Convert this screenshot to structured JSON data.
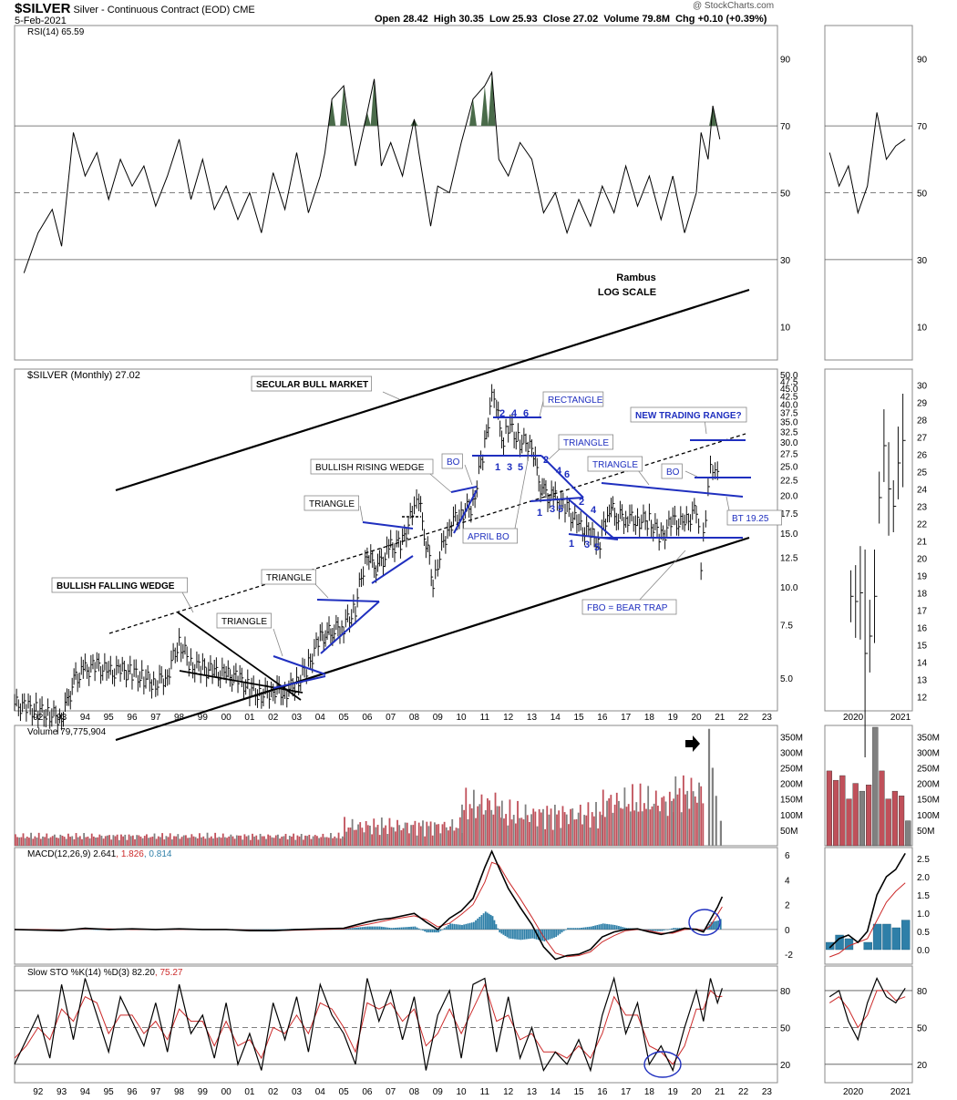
{
  "header": {
    "symbol": "$SILVER",
    "description": "Silver - Continuous Contract (EOD)",
    "exchange": "CME",
    "date": "5-Feb-2021",
    "copyright": "@ StockCharts.com",
    "open_label": "Open",
    "open": "28.42",
    "high_label": "High",
    "high": "30.35",
    "low_label": "Low",
    "low": "25.93",
    "close_label": "Close",
    "close": "27.02",
    "volume_label": "Volume",
    "volume": "79.8M",
    "chg_label": "Chg",
    "chg": "+0.10 (+0.39%)"
  },
  "colors": {
    "background": "#ffffff",
    "frame": "#888888",
    "up_volume": "#808080",
    "down_volume": "#c0505a",
    "annotation_blue": "#1f2fbf",
    "macd_hist": "#2e7fa8",
    "signal_red": "#cc2a2a",
    "rsi_fill": "#4a6b4a"
  },
  "chart_data": [
    {
      "type": "line",
      "name": "rsi",
      "legend": "RSI(14) 65.59",
      "yticks": [
        "90",
        "70",
        "50",
        "30",
        "10"
      ],
      "ylim": [
        0,
        100
      ],
      "reference_lines": [
        70,
        50,
        30
      ],
      "x": [
        1991.4,
        1992.0,
        1992.6,
        1993.0,
        1993.5,
        1994.0,
        1994.5,
        1995.0,
        1995.5,
        1996.0,
        1996.5,
        1997.0,
        1997.5,
        1998.0,
        1998.5,
        1999.0,
        1999.5,
        2000.0,
        2000.5,
        2001.0,
        2001.5,
        2002.0,
        2002.5,
        2003.0,
        2003.5,
        2004.0,
        2004.2,
        2004.5,
        2005.0,
        2005.5,
        2006.0,
        2006.3,
        2006.6,
        2007.0,
        2007.5,
        2008.0,
        2008.2,
        2008.7,
        2009.0,
        2009.5,
        2010.0,
        2010.5,
        2011.0,
        2011.3,
        2011.6,
        2012.0,
        2012.5,
        2013.0,
        2013.5,
        2014.0,
        2014.5,
        2015.0,
        2015.5,
        2016.0,
        2016.5,
        2017.0,
        2017.5,
        2018.0,
        2018.5,
        2019.0,
        2019.5,
        2020.0,
        2020.2,
        2020.5,
        2020.7,
        2021.0
      ],
      "values": [
        26,
        38,
        45,
        34,
        68,
        55,
        62,
        48,
        60,
        52,
        58,
        46,
        55,
        66,
        48,
        60,
        45,
        52,
        42,
        50,
        38,
        56,
        45,
        62,
        44,
        55,
        62,
        78,
        82,
        58,
        74,
        84,
        58,
        65,
        55,
        72,
        62,
        40,
        52,
        50,
        65,
        78,
        82,
        86,
        60,
        55,
        65,
        60,
        44,
        50,
        38,
        48,
        40,
        52,
        44,
        58,
        46,
        55,
        42,
        55,
        38,
        50,
        68,
        60,
        76,
        66
      ],
      "series": [
        {
          "name": "RSI(14)",
          "last": 65.59
        }
      ]
    },
    {
      "type": "line",
      "name": "rsi_inset",
      "yticks": [
        "90",
        "70",
        "50",
        "30",
        "10"
      ],
      "ylim": [
        0,
        100
      ],
      "x": [
        2019.5,
        2019.7,
        2019.9,
        2020.1,
        2020.3,
        2020.5,
        2020.7,
        2020.9,
        2021.1
      ],
      "values": [
        62,
        52,
        58,
        44,
        52,
        74,
        60,
        64,
        66
      ]
    },
    {
      "type": "line",
      "name": "price",
      "legend": "$SILVER (Monthly) 27.02",
      "title": "Rambus",
      "subtitle": "LOG SCALE",
      "log_scale": true,
      "ylim": [
        3.9,
        50
      ],
      "yticks": [
        "50.0",
        "47.5",
        "45.0",
        "42.5",
        "40.0",
        "37.5",
        "35.0",
        "32.5",
        "30.0",
        "27.5",
        "25.0",
        "22.5",
        "20.0",
        "17.5",
        "15.0",
        "12.5",
        "10.0",
        "7.5",
        "5.0"
      ],
      "xticks": [
        "92",
        "93",
        "94",
        "95",
        "96",
        "97",
        "98",
        "99",
        "00",
        "01",
        "02",
        "03",
        "04",
        "05",
        "06",
        "07",
        "08",
        "09",
        "10",
        "11",
        "12",
        "13",
        "14",
        "15",
        "16",
        "17",
        "18",
        "19",
        "20",
        "21",
        "22",
        "23"
      ],
      "x": [
        1991.0,
        1991.5,
        1992.0,
        1992.5,
        1993.0,
        1993.3,
        1993.6,
        1994.0,
        1994.5,
        1995.0,
        1995.5,
        1996.0,
        1996.5,
        1997.0,
        1997.5,
        1998.0,
        1998.5,
        1999.0,
        1999.5,
        2000.0,
        2000.5,
        2001.0,
        2001.5,
        2002.0,
        2002.5,
        2003.0,
        2003.5,
        2004.0,
        2004.3,
        2004.6,
        2005.0,
        2005.5,
        2006.0,
        2006.3,
        2006.6,
        2007.0,
        2007.5,
        2008.0,
        2008.2,
        2008.5,
        2008.8,
        2009.0,
        2009.5,
        2010.0,
        2010.5,
        2011.0,
        2011.3,
        2011.5,
        2011.8,
        2012.0,
        2012.5,
        2013.0,
        2013.3,
        2013.6,
        2014.0,
        2014.5,
        2015.0,
        2015.5,
        2015.9,
        2016.3,
        2016.6,
        2017.0,
        2017.5,
        2018.0,
        2018.5,
        2019.0,
        2019.5,
        2020.0,
        2020.2,
        2020.4,
        2020.6,
        2020.8,
        2021.0
      ],
      "values": [
        4.1,
        4.0,
        3.9,
        3.8,
        3.7,
        4.3,
        5.0,
        5.3,
        5.5,
        5.2,
        5.3,
        5.2,
        5.0,
        4.8,
        5.1,
        6.6,
        5.5,
        5.4,
        5.2,
        5.1,
        5.0,
        4.6,
        4.4,
        4.6,
        4.5,
        4.8,
        5.5,
        6.8,
        7.0,
        7.2,
        7.4,
        8.5,
        13.0,
        11.5,
        12.0,
        13.5,
        14.0,
        18.0,
        19.0,
        14.0,
        10.5,
        12.0,
        16.0,
        17.5,
        18.5,
        29.0,
        42.0,
        38.0,
        30.0,
        34.0,
        30.0,
        29.5,
        22.0,
        20.0,
        19.5,
        18.0,
        15.8,
        14.8,
        14.0,
        18.5,
        17.0,
        17.0,
        16.5,
        16.5,
        14.5,
        16.5,
        16.0,
        18.0,
        12.0,
        17.5,
        26.0,
        24.0,
        27.0
      ]
    },
    {
      "type": "line",
      "name": "price_inset",
      "yticks": [
        "30",
        "29",
        "28",
        "27",
        "26",
        "25",
        "24",
        "23",
        "22",
        "21",
        "20",
        "19",
        "18",
        "17",
        "16",
        "15",
        "14",
        "13",
        "12"
      ],
      "ylim": [
        11.5,
        30.5
      ],
      "xticks": [
        "2020",
        "2021"
      ],
      "x": [
        2019.95,
        2020.05,
        2020.15,
        2020.25,
        2020.35,
        2020.45,
        2020.55,
        2020.65,
        2020.75,
        2020.85,
        2020.95,
        2021.05
      ],
      "values": [
        17.8,
        17.5,
        18.0,
        14.5,
        15.5,
        17.8,
        23.5,
        26.5,
        24.0,
        23.0,
        25.5,
        26.8
      ]
    },
    {
      "type": "bar",
      "name": "volume",
      "legend": "Volume 79,775,904",
      "yticks": [
        "350M",
        "300M",
        "250M",
        "200M",
        "150M",
        "100M",
        "50M"
      ],
      "ylim": [
        0,
        380
      ],
      "ranges": [
        {
          "from": 1991.0,
          "to": 2005.0,
          "min": 18,
          "max": 42
        },
        {
          "from": 2005.0,
          "to": 2010.0,
          "min": 30,
          "max": 95
        },
        {
          "from": 2010.0,
          "to": 2011.7,
          "min": 70,
          "max": 190
        },
        {
          "from": 2011.7,
          "to": 2016.0,
          "min": 50,
          "max": 150
        },
        {
          "from": 2016.0,
          "to": 2019.0,
          "min": 80,
          "max": 200
        },
        {
          "from": 2019.0,
          "to": 2020.3,
          "min": 100,
          "max": 240
        }
      ],
      "spikes": [
        {
          "x": 2020.5,
          "value": 375
        },
        {
          "x": 2020.65,
          "value": 250
        },
        {
          "x": 2020.8,
          "value": 160
        },
        {
          "x": 2021.0,
          "value": 80
        }
      ]
    },
    {
      "type": "bar",
      "name": "volume_inset",
      "yticks": [
        "350M",
        "300M",
        "250M",
        "200M",
        "150M",
        "100M",
        "50M"
      ],
      "ylim": [
        0,
        380
      ],
      "values": [
        240,
        210,
        225,
        150,
        200,
        175,
        195,
        380,
        240,
        150,
        175,
        160,
        80
      ]
    },
    {
      "type": "line",
      "name": "macd",
      "legend": [
        "MACD(12,26,9)",
        "2.641",
        "1.826",
        "0.814"
      ],
      "yticks": [
        "6",
        "4",
        "2",
        "0",
        "-2"
      ],
      "ylim": [
        -2.8,
        6.6
      ],
      "x": [
        1991.0,
        1992.0,
        1993.0,
        1994.0,
        1995.0,
        1996.0,
        1997.0,
        1998.0,
        1999.0,
        2000.0,
        2001.0,
        2002.0,
        2003.0,
        2004.0,
        2005.0,
        2006.0,
        2006.5,
        2007.0,
        2008.0,
        2008.5,
        2009.0,
        2009.5,
        2010.0,
        2010.5,
        2011.0,
        2011.3,
        2011.6,
        2012.0,
        2012.5,
        2013.0,
        2013.5,
        2014.0,
        2014.5,
        2015.0,
        2015.5,
        2016.0,
        2016.5,
        2017.0,
        2017.5,
        2018.0,
        2018.5,
        2019.0,
        2019.5,
        2020.0,
        2020.3,
        2020.6,
        2020.9,
        2021.1
      ],
      "values": [
        0.0,
        -0.05,
        -0.1,
        0.1,
        0.0,
        0.05,
        0.0,
        0.05,
        0.0,
        0.0,
        -0.1,
        -0.1,
        0.0,
        0.05,
        0.1,
        0.6,
        0.8,
        0.9,
        1.3,
        0.6,
        0.0,
        0.9,
        1.5,
        2.5,
        5.0,
        6.3,
        5.0,
        3.3,
        1.8,
        0.4,
        -1.4,
        -2.4,
        -2.1,
        -2.0,
        -1.6,
        -0.6,
        -0.2,
        0.0,
        0.05,
        -0.2,
        -0.4,
        -0.2,
        0.1,
        0.0,
        -0.2,
        0.8,
        1.8,
        2.64
      ],
      "signal": [
        0.0,
        0.0,
        -0.05,
        0.05,
        0.05,
        0.0,
        0.0,
        0.02,
        0.0,
        0.0,
        -0.05,
        -0.1,
        -0.05,
        0.0,
        0.05,
        0.4,
        0.6,
        0.8,
        1.1,
        0.8,
        0.2,
        0.5,
        1.2,
        2.0,
        3.8,
        5.4,
        5.2,
        3.9,
        2.5,
        1.0,
        -0.6,
        -1.9,
        -2.2,
        -2.1,
        -1.8,
        -1.0,
        -0.5,
        -0.1,
        0.0,
        -0.1,
        -0.3,
        -0.3,
        0.0,
        0.05,
        -0.1,
        0.3,
        1.2,
        1.83
      ],
      "series": [
        {
          "name": "MACD(12,26,9)",
          "last": 2.641
        },
        {
          "name": "Signal",
          "last": 1.826
        },
        {
          "name": "Histogram",
          "last": 0.814
        }
      ]
    },
    {
      "type": "line",
      "name": "macd_inset",
      "yticks": [
        "2.5",
        "2.0",
        "1.5",
        "1.0",
        "0.5",
        "0.0"
      ],
      "ylim": [
        -0.4,
        2.8
      ],
      "x": [
        2019.5,
        2019.7,
        2019.9,
        2020.1,
        2020.3,
        2020.5,
        2020.7,
        2020.9,
        2021.1
      ],
      "values": [
        0.05,
        0.3,
        0.4,
        0.2,
        0.5,
        1.5,
        2.0,
        2.2,
        2.64
      ],
      "signal": [
        -0.2,
        -0.1,
        0.1,
        0.2,
        0.3,
        0.8,
        1.3,
        1.6,
        1.83
      ],
      "histogram": [
        0.2,
        0.4,
        0.3,
        0.0,
        0.2,
        0.7,
        0.7,
        0.6,
        0.81
      ]
    },
    {
      "type": "line",
      "name": "slow_sto",
      "legend": [
        "Slow STO %K(14) %D(3)",
        "82.20",
        "75.27"
      ],
      "yticks": [
        "80",
        "50",
        "20"
      ],
      "ylim": [
        5,
        100
      ],
      "reference_lines": [
        80,
        50,
        20
      ],
      "x": [
        1991.0,
        1991.5,
        1992.0,
        1992.5,
        1993.0,
        1993.5,
        1994.0,
        1994.5,
        1995.0,
        1995.5,
        1996.0,
        1996.5,
        1997.0,
        1997.5,
        1998.0,
        1998.5,
        1999.0,
        1999.5,
        2000.0,
        2000.5,
        2001.0,
        2001.5,
        2002.0,
        2002.5,
        2003.0,
        2003.5,
        2004.0,
        2004.5,
        2005.0,
        2005.5,
        2006.0,
        2006.5,
        2007.0,
        2007.5,
        2008.0,
        2008.5,
        2009.0,
        2009.5,
        2010.0,
        2010.5,
        2011.0,
        2011.5,
        2012.0,
        2012.5,
        2013.0,
        2013.5,
        2014.0,
        2014.5,
        2015.0,
        2015.5,
        2016.0,
        2016.5,
        2017.0,
        2017.5,
        2018.0,
        2018.5,
        2019.0,
        2019.5,
        2020.0,
        2020.3,
        2020.6,
        2020.9,
        2021.1
      ],
      "values": [
        20,
        40,
        60,
        25,
        85,
        40,
        90,
        60,
        30,
        75,
        55,
        35,
        70,
        30,
        85,
        45,
        60,
        25,
        70,
        20,
        45,
        15,
        70,
        40,
        75,
        30,
        85,
        60,
        45,
        20,
        90,
        55,
        80,
        40,
        75,
        15,
        60,
        80,
        25,
        85,
        90,
        30,
        75,
        25,
        50,
        15,
        30,
        20,
        40,
        15,
        60,
        90,
        45,
        70,
        20,
        35,
        15,
        50,
        80,
        55,
        90,
        70,
        82
      ],
      "d": [
        25,
        35,
        50,
        40,
        65,
        55,
        75,
        70,
        45,
        60,
        60,
        45,
        55,
        40,
        65,
        55,
        55,
        35,
        55,
        35,
        40,
        25,
        50,
        45,
        60,
        45,
        70,
        65,
        50,
        30,
        70,
        65,
        70,
        55,
        65,
        35,
        45,
        65,
        45,
        65,
        85,
        55,
        60,
        40,
        45,
        30,
        30,
        25,
        35,
        25,
        45,
        75,
        60,
        60,
        35,
        30,
        20,
        35,
        65,
        65,
        80,
        75,
        75.27
      ],
      "series": [
        {
          "name": "%K(14)",
          "last": 82.2
        },
        {
          "name": "%D(3)",
          "last": 75.27
        }
      ]
    },
    {
      "type": "line",
      "name": "slow_sto_inset",
      "yticks": [
        "80",
        "50",
        "20"
      ],
      "ylim": [
        5,
        100
      ],
      "x": [
        2019.5,
        2019.7,
        2019.9,
        2020.1,
        2020.3,
        2020.5,
        2020.7,
        2020.9,
        2021.1
      ],
      "values": [
        75,
        80,
        55,
        40,
        70,
        90,
        75,
        70,
        82
      ],
      "d": [
        70,
        75,
        65,
        50,
        60,
        80,
        80,
        72,
        75
      ]
    }
  ],
  "annotations": {
    "secular": "SECULAR BULL MARKET",
    "falling_wedge": "BULLISH FALLING WEDGE",
    "triangle_02": "TRIANGLE",
    "triangle_04": "TRIANGLE",
    "triangle_06": "TRIANGLE",
    "rising_wedge": "BULLISH RISING WEDGE",
    "bo_2010": "BO",
    "april_bo": "APRIL BO",
    "rectangle": "RECTANGLE",
    "triangle_13": "TRIANGLE",
    "triangle_16": "TRIANGLE",
    "new_range": "NEW TRADING RANGE?",
    "bo_2020": "BO",
    "bt": "BT 19.25",
    "fbo": "FBO = BEAR TRAP",
    "wave_top": [
      "2",
      "4",
      "6",
      "1",
      "3",
      "5"
    ],
    "wave_mid": [
      "2",
      "4",
      "6",
      "1",
      "3",
      "5"
    ],
    "wave_low": [
      "2",
      "4",
      "1",
      "3",
      "5"
    ]
  }
}
